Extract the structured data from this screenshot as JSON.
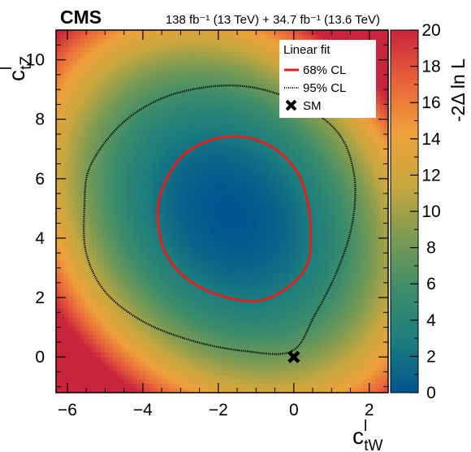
{
  "experiment": "CMS",
  "lumi_text": "138 fb⁻¹ (13 TeV) + 34.7 fb⁻¹ (13.6 TeV)",
  "colors": {
    "contour_68": "#e0201b",
    "contour_95": "#000000",
    "marker": "#000000",
    "colormap": [
      "#00558f",
      "#1c7e7e",
      "#3d8d6a",
      "#7c9b52",
      "#c8a73f",
      "#eea23b",
      "#e8633a",
      "#c8243b"
    ]
  },
  "chart_data": {
    "type": "heatmap",
    "title": "",
    "xlabel": "c_tW^l",
    "ylabel": "c_tZ^l",
    "xlim": [
      -6.3,
      2.5
    ],
    "ylim": [
      -1.2,
      11.0
    ],
    "x_ticks": [
      "−6",
      "−4",
      "−2",
      "0",
      "2"
    ],
    "x_tick_values": [
      -6,
      -4,
      -2,
      0,
      2
    ],
    "y_ticks": [
      "0",
      "2",
      "4",
      "6",
      "8",
      "10"
    ],
    "y_tick_values": [
      0,
      2,
      4,
      6,
      8,
      10
    ],
    "colorbar": {
      "label": "-2Δ ln L",
      "range": [
        0,
        20
      ],
      "ticks": [
        "0",
        "2",
        "4",
        "6",
        "8",
        "10",
        "12",
        "14",
        "16",
        "18",
        "20"
      ],
      "tick_values": [
        0,
        2,
        4,
        6,
        8,
        10,
        12,
        14,
        16,
        18,
        20
      ]
    },
    "best_fit": {
      "x": -1.7,
      "y": 4.8
    },
    "sm_point": {
      "x": 0,
      "y": 0
    },
    "contours": [
      {
        "name": "68% CL",
        "style": "solid",
        "points": [
          [
            0.45,
            4.0
          ],
          [
            0.38,
            5.1
          ],
          [
            0.1,
            6.2
          ],
          [
            -0.5,
            7.0
          ],
          [
            -1.3,
            7.4
          ],
          [
            -2.2,
            7.3
          ],
          [
            -3.0,
            6.7
          ],
          [
            -3.5,
            5.6
          ],
          [
            -3.6,
            4.6
          ],
          [
            -3.4,
            3.5
          ],
          [
            -2.8,
            2.6
          ],
          [
            -1.9,
            2.05
          ],
          [
            -0.9,
            1.9
          ],
          [
            -0.1,
            2.4
          ],
          [
            0.35,
            3.1
          ],
          [
            0.45,
            4.0
          ]
        ]
      },
      {
        "name": "95% CL",
        "style": "dotted",
        "points": [
          [
            -0.05,
            0.2
          ],
          [
            0.55,
            1.4
          ],
          [
            1.15,
            2.9
          ],
          [
            1.55,
            4.5
          ],
          [
            1.6,
            6.1
          ],
          [
            1.2,
            7.5
          ],
          [
            0.2,
            8.5
          ],
          [
            -1.0,
            9.05
          ],
          [
            -2.2,
            9.1
          ],
          [
            -3.5,
            8.7
          ],
          [
            -4.6,
            7.8
          ],
          [
            -5.4,
            6.4
          ],
          [
            -5.55,
            5.0
          ],
          [
            -5.5,
            3.5
          ],
          [
            -5.0,
            2.2
          ],
          [
            -4.0,
            1.2
          ],
          [
            -2.7,
            0.55
          ],
          [
            -1.3,
            0.2
          ],
          [
            -0.05,
            0.2
          ]
        ]
      }
    ]
  },
  "legend": {
    "title": "Linear fit",
    "entries": [
      {
        "label": "68% CL",
        "style": "solid"
      },
      {
        "label": "95% CL",
        "style": "dotted"
      },
      {
        "label": "SM",
        "style": "marker"
      }
    ]
  }
}
